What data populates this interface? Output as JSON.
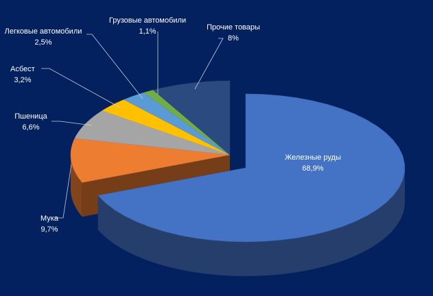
{
  "chart_data": {
    "type": "pie",
    "style": "3d-exploded",
    "categories": [
      "Железные руды",
      "Мука",
      "Пшеница",
      "Асбест",
      "Легковые автомобили",
      "Грузовые автомобили",
      "Прочие товары"
    ],
    "values": [
      68.9,
      9.7,
      6.6,
      3.2,
      2.5,
      1.1,
      8
    ],
    "value_labels": [
      "68,9%",
      "9,7%",
      "6,6%",
      "3,2%",
      "2,5%",
      "1,1%",
      "8%"
    ],
    "colors": [
      "#4472c4",
      "#ed7d31",
      "#a5a5a5",
      "#ffc000",
      "#5b9bd5",
      "#70ad47",
      "#2b4a80"
    ],
    "exploded": [
      "Железные руды"
    ],
    "background": "#03215f"
  }
}
